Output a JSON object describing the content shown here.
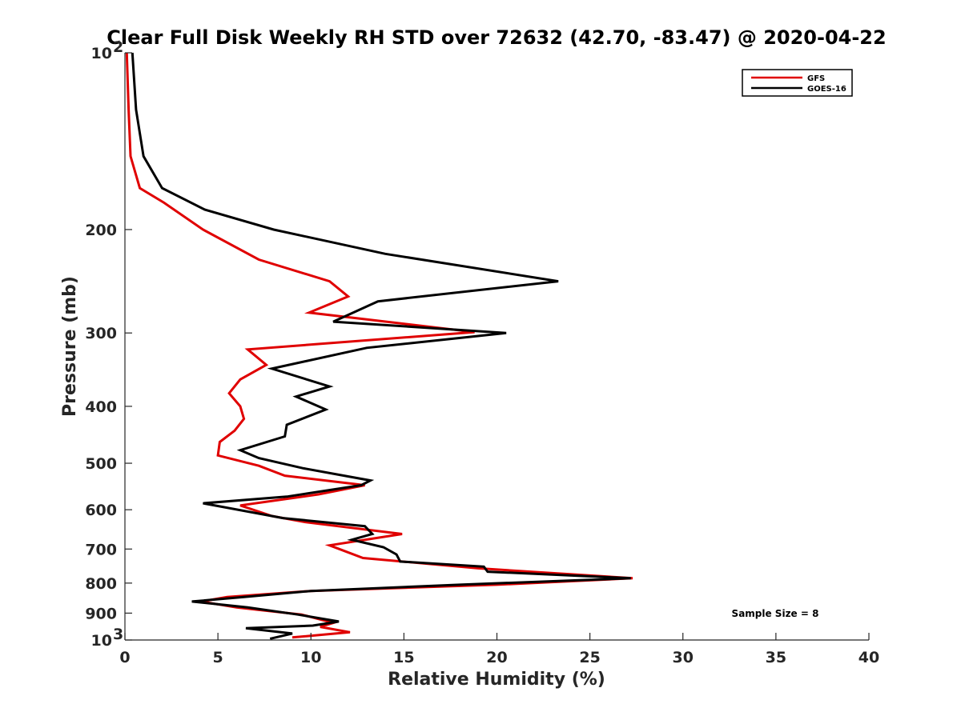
{
  "chart_data": {
    "type": "line",
    "title": "Clear Full Disk Weekly RH STD over 72632 (42.70, -83.47) @ 2020-04-22",
    "xlabel": "Relative Humidity (%)",
    "ylabel": "Pressure (mb)",
    "xlim": [
      0,
      40
    ],
    "ylim": [
      100,
      1000
    ],
    "yscale": "log",
    "y_reversed": true,
    "x_ticks": [
      "0",
      "5",
      "10",
      "15",
      "20",
      "25",
      "30",
      "35",
      "40"
    ],
    "y_ticks": [
      {
        "value": 100,
        "label": "10",
        "sup": "2"
      },
      {
        "value": 200,
        "label": "200",
        "sup": ""
      },
      {
        "value": 300,
        "label": "300",
        "sup": ""
      },
      {
        "value": 400,
        "label": "400",
        "sup": ""
      },
      {
        "value": 500,
        "label": "500",
        "sup": ""
      },
      {
        "value": 600,
        "label": "600",
        "sup": ""
      },
      {
        "value": 700,
        "label": "700",
        "sup": ""
      },
      {
        "value": 800,
        "label": "800",
        "sup": ""
      },
      {
        "value": 900,
        "label": "900",
        "sup": ""
      },
      {
        "value": 1000,
        "label": "10",
        "sup": "3"
      }
    ],
    "grid": false,
    "legend_position": "top-right",
    "annotation": "Sample Size = 8",
    "series": [
      {
        "name": "GFS",
        "color": "#e00000",
        "points": [
          [
            0.1,
            100
          ],
          [
            0.2,
            125
          ],
          [
            0.3,
            150
          ],
          [
            0.8,
            170
          ],
          [
            2.1,
            180
          ],
          [
            4.2,
            200
          ],
          [
            7.2,
            225
          ],
          [
            11.0,
            245
          ],
          [
            12.0,
            260
          ],
          [
            9.9,
            277
          ],
          [
            18.8,
            299
          ],
          [
            6.6,
            320
          ],
          [
            7.6,
            340
          ],
          [
            6.2,
            360
          ],
          [
            5.6,
            380
          ],
          [
            6.2,
            400
          ],
          [
            6.4,
            420
          ],
          [
            5.9,
            440
          ],
          [
            5.1,
            460
          ],
          [
            5.0,
            485
          ],
          [
            7.2,
            505
          ],
          [
            8.6,
            525
          ],
          [
            12.9,
            545
          ],
          [
            10.4,
            565
          ],
          [
            6.2,
            590
          ],
          [
            7.9,
            615
          ],
          [
            9.7,
            630
          ],
          [
            14.9,
            660
          ],
          [
            11.0,
            690
          ],
          [
            12.8,
            725
          ],
          [
            19.0,
            755
          ],
          [
            27.3,
            785
          ],
          [
            20.0,
            805
          ],
          [
            10.0,
            825
          ],
          [
            5.5,
            845
          ],
          [
            4.1,
            860
          ],
          [
            6.0,
            880
          ],
          [
            9.5,
            905
          ],
          [
            11.2,
            935
          ],
          [
            10.5,
            950
          ],
          [
            12.1,
            970
          ],
          [
            9.0,
            990
          ]
        ]
      },
      {
        "name": "GOES-16",
        "color": "#000000",
        "points": [
          [
            0.4,
            100
          ],
          [
            0.6,
            125
          ],
          [
            1.0,
            150
          ],
          [
            2.0,
            170
          ],
          [
            4.3,
            185
          ],
          [
            8.0,
            200
          ],
          [
            14.0,
            220
          ],
          [
            23.3,
            245
          ],
          [
            13.6,
            265
          ],
          [
            11.2,
            287
          ],
          [
            20.5,
            300
          ],
          [
            13.0,
            318
          ],
          [
            7.9,
            345
          ],
          [
            11.0,
            370
          ],
          [
            9.2,
            385
          ],
          [
            10.8,
            405
          ],
          [
            8.7,
            430
          ],
          [
            8.6,
            450
          ],
          [
            6.2,
            475
          ],
          [
            7.2,
            490
          ],
          [
            9.6,
            510
          ],
          [
            13.2,
            535
          ],
          [
            12.7,
            545
          ],
          [
            8.7,
            570
          ],
          [
            4.2,
            585
          ],
          [
            8.5,
            620
          ],
          [
            12.9,
            640
          ],
          [
            13.3,
            660
          ],
          [
            12.2,
            675
          ],
          [
            13.9,
            695
          ],
          [
            14.6,
            715
          ],
          [
            14.8,
            735
          ],
          [
            19.3,
            750
          ],
          [
            19.5,
            765
          ],
          [
            27.2,
            785
          ],
          [
            18.0,
            805
          ],
          [
            10.0,
            825
          ],
          [
            6.4,
            845
          ],
          [
            3.6,
            860
          ],
          [
            6.6,
            880
          ],
          [
            9.3,
            905
          ],
          [
            11.5,
            930
          ],
          [
            10.1,
            945
          ],
          [
            6.5,
            955
          ],
          [
            9.0,
            975
          ],
          [
            7.8,
            995
          ]
        ]
      }
    ]
  }
}
